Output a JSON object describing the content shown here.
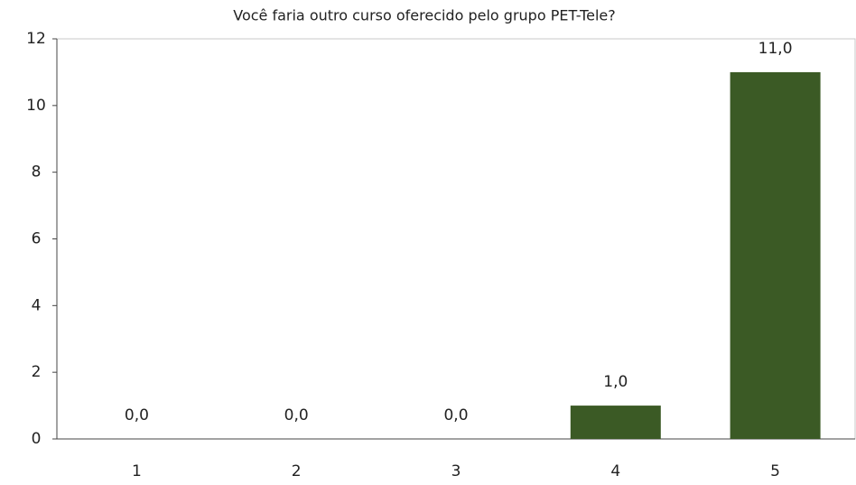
{
  "chart_data": {
    "type": "bar",
    "title": "Você faria outro curso oferecido pelo grupo PET-Tele?",
    "categories": [
      "1",
      "2",
      "3",
      "4",
      "5"
    ],
    "values": [
      0,
      0,
      0,
      1,
      11
    ],
    "value_labels": [
      "0,0",
      "0,0",
      "0,0",
      "1,0",
      "11,0"
    ],
    "color": "#3b5a25",
    "ylim": [
      0,
      12
    ],
    "yticks": [
      0,
      2,
      4,
      6,
      8,
      10,
      12
    ],
    "grid": false
  }
}
